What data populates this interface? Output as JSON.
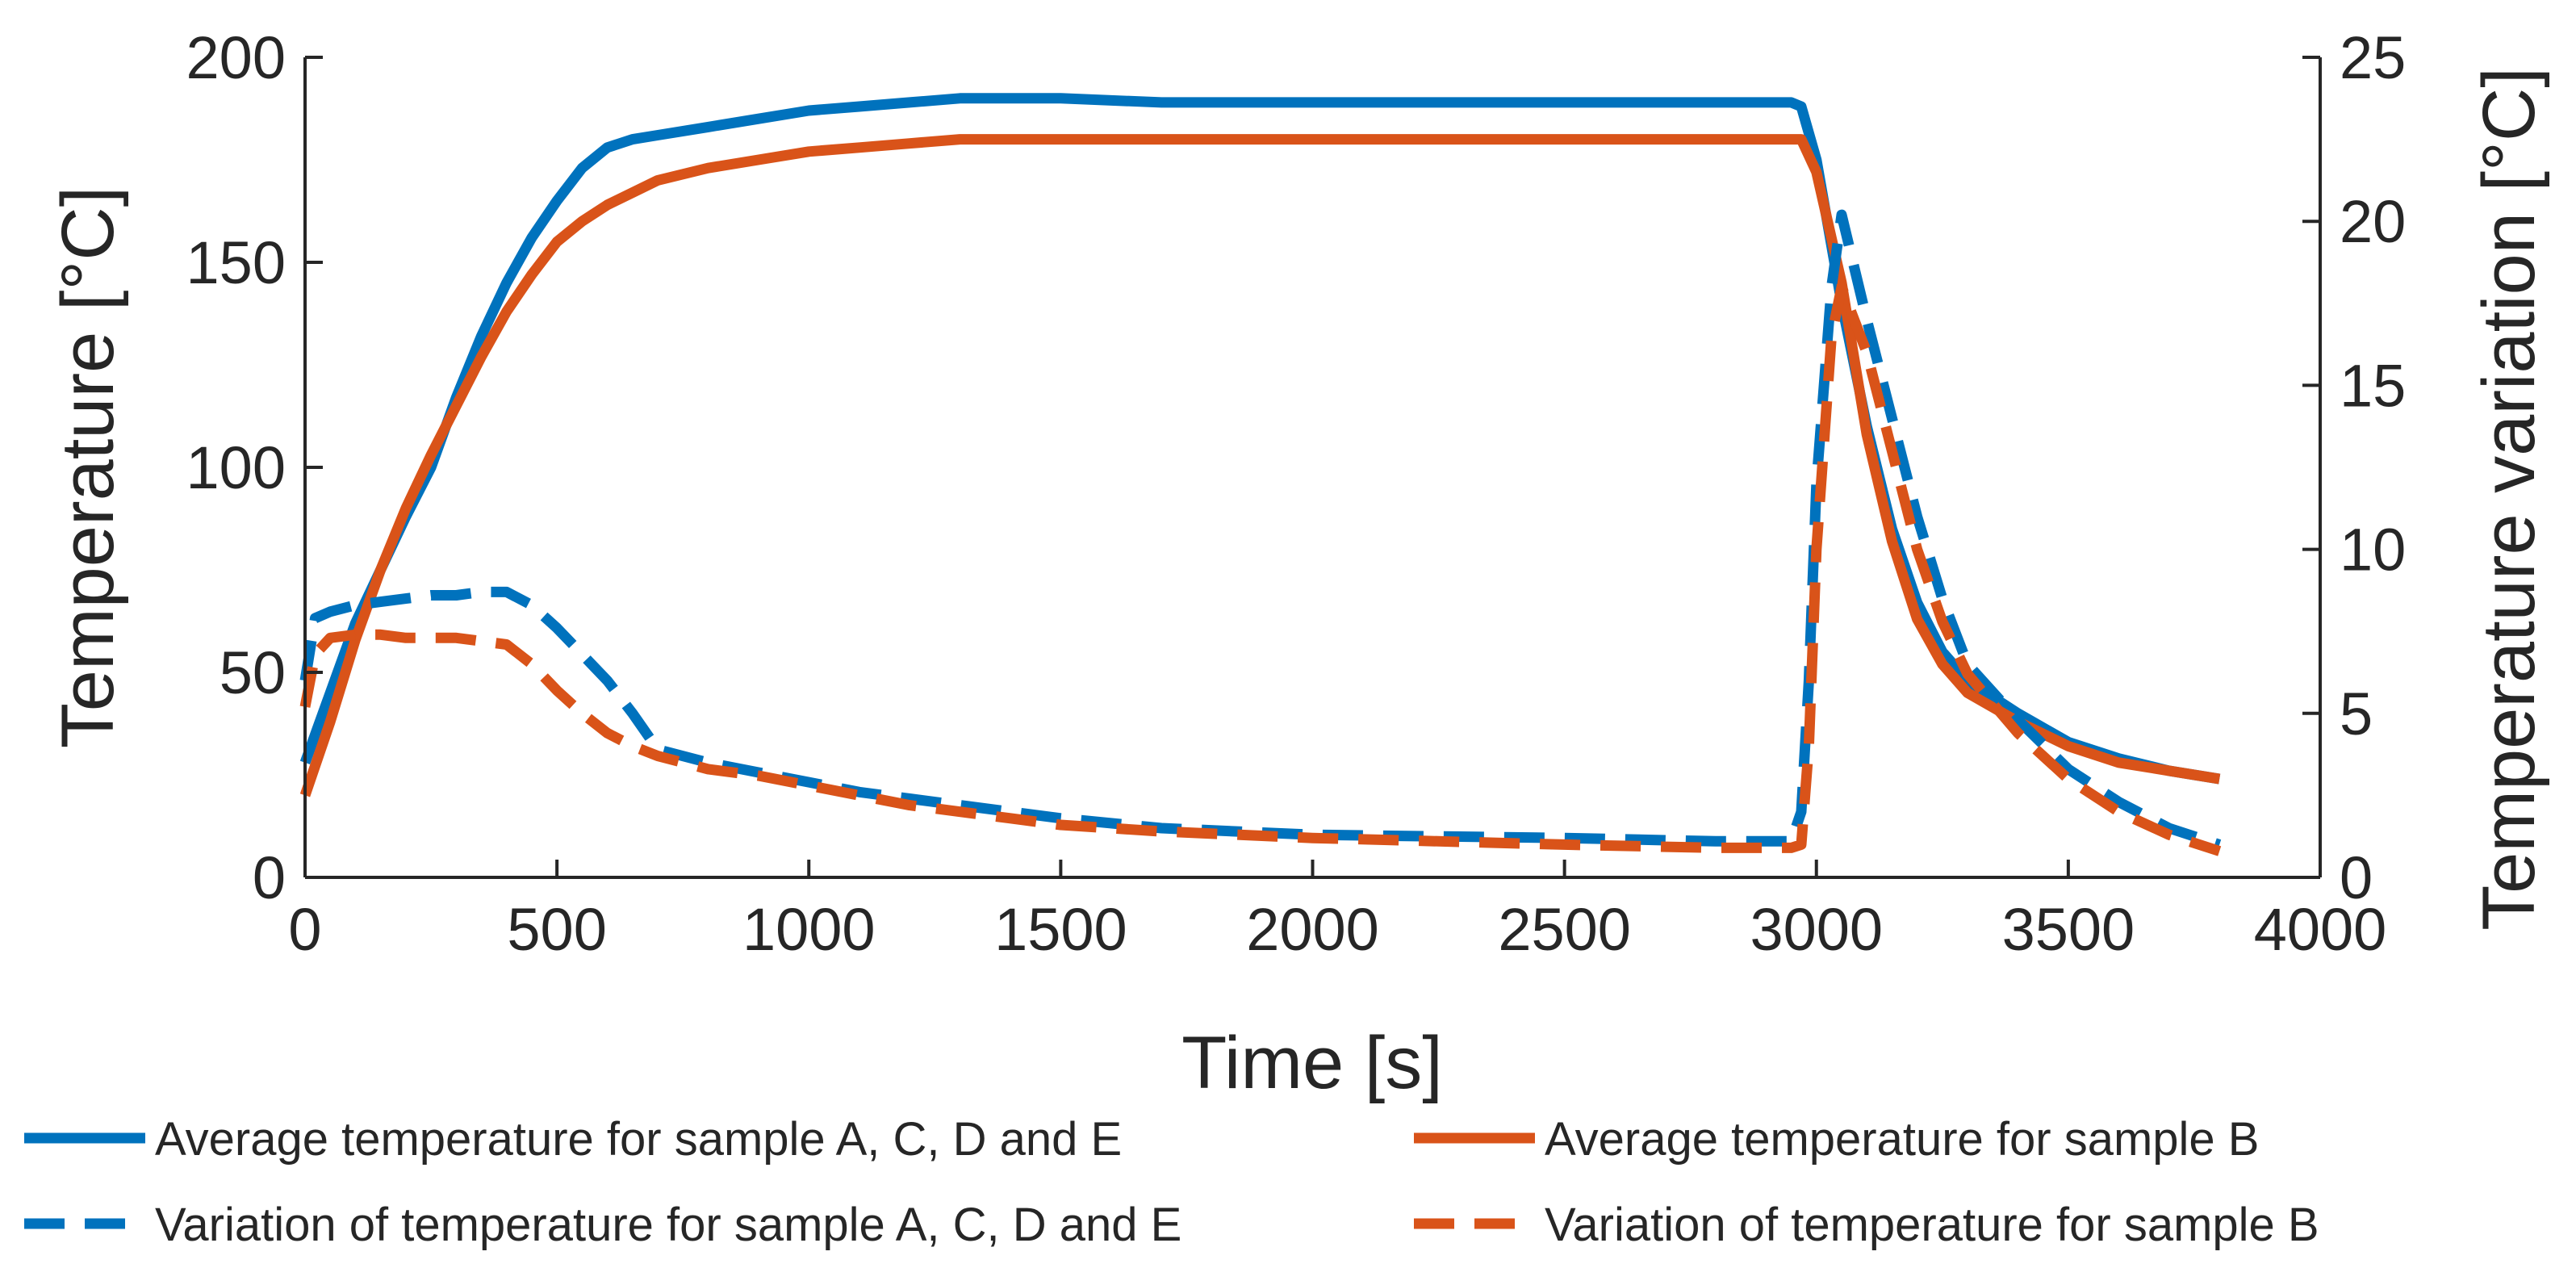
{
  "chart_data": {
    "type": "line",
    "xlabel": "Time [s]",
    "ylabel": "Temperature [°C]",
    "y2label": "Temperature variation [°C]",
    "xlim": [
      0,
      4000
    ],
    "ylim": [
      0,
      200
    ],
    "y2lim": [
      0,
      25
    ],
    "xticks": [
      "0",
      "500",
      "1000",
      "1500",
      "2000",
      "2500",
      "3000",
      "3500",
      "4000"
    ],
    "yticks": [
      "0",
      "50",
      "100",
      "150",
      "200"
    ],
    "y2ticks": [
      "0",
      "5",
      "10",
      "15",
      "20",
      "25"
    ],
    "grid": false,
    "legend_position": "bottom",
    "colors": {
      "blue": "#0072BD",
      "orange": "#D95319",
      "axis": "#262626"
    },
    "series": [
      {
        "name": "Average temperature for sample A, C, D and E",
        "axis": "left",
        "style": "solid",
        "color": "#0072BD",
        "x": [
          0,
          50,
          100,
          150,
          200,
          250,
          300,
          350,
          400,
          450,
          500,
          550,
          600,
          650,
          700,
          800,
          900,
          1000,
          1100,
          1200,
          1300,
          1400,
          1500,
          1700,
          2000,
          2500,
          2800,
          2950,
          2970,
          3000,
          3050,
          3100,
          3150,
          3200,
          3250,
          3300,
          3400,
          3500,
          3600,
          3700,
          3800
        ],
        "y": [
          28,
          45,
          62,
          75,
          88,
          100,
          117,
          132,
          145,
          156,
          165,
          173,
          178,
          180,
          181,
          183,
          185,
          187,
          188,
          189,
          190,
          190,
          190,
          189,
          189,
          189,
          189,
          189,
          188,
          175,
          140,
          110,
          85,
          67,
          55,
          48,
          40,
          33,
          29,
          26,
          24
        ]
      },
      {
        "name": "Average temperature for sample B",
        "axis": "left",
        "style": "solid",
        "color": "#D95319",
        "x": [
          0,
          50,
          100,
          150,
          200,
          250,
          300,
          350,
          400,
          450,
          500,
          550,
          600,
          650,
          700,
          800,
          900,
          1000,
          1100,
          1200,
          1300,
          1400,
          1500,
          1700,
          2000,
          2500,
          2800,
          2950,
          2970,
          3000,
          3050,
          3100,
          3150,
          3200,
          3250,
          3300,
          3400,
          3500,
          3600,
          3700,
          3800
        ],
        "y": [
          20,
          38,
          58,
          75,
          90,
          103,
          115,
          127,
          138,
          147,
          155,
          160,
          164,
          167,
          170,
          173,
          175,
          177,
          178,
          179,
          180,
          180,
          180,
          180,
          180,
          180,
          180,
          180,
          180,
          172,
          145,
          108,
          82,
          63,
          52,
          45,
          38,
          32,
          28,
          26,
          24
        ]
      },
      {
        "name": "Variation of temperature for sample A, C, D and E",
        "axis": "right",
        "style": "dashed",
        "color": "#0072BD",
        "x": [
          0,
          20,
          50,
          100,
          150,
          200,
          250,
          300,
          350,
          400,
          450,
          500,
          550,
          600,
          650,
          700,
          800,
          900,
          1000,
          1100,
          1200,
          1300,
          1400,
          1500,
          1700,
          2000,
          2500,
          2800,
          2950,
          2970,
          2985,
          3000,
          3030,
          3050,
          3100,
          3150,
          3200,
          3250,
          3300,
          3400,
          3500,
          3600,
          3700,
          3800
        ],
        "y": [
          6.0,
          7.9,
          8.1,
          8.3,
          8.4,
          8.5,
          8.6,
          8.6,
          8.7,
          8.7,
          8.3,
          7.6,
          6.8,
          6.0,
          5.0,
          3.9,
          3.5,
          3.2,
          2.9,
          2.6,
          2.4,
          2.2,
          2.0,
          1.8,
          1.5,
          1.3,
          1.2,
          1.1,
          1.1,
          2.0,
          6.0,
          12.0,
          18.0,
          20.2,
          17.0,
          14.0,
          11.0,
          8.5,
          6.5,
          4.8,
          3.3,
          2.3,
          1.5,
          1.0
        ]
      },
      {
        "name": "Variation of temperature for sample B",
        "axis": "right",
        "style": "dashed",
        "color": "#D95319",
        "x": [
          0,
          20,
          50,
          100,
          150,
          200,
          250,
          300,
          350,
          400,
          450,
          500,
          550,
          600,
          650,
          700,
          800,
          900,
          1000,
          1100,
          1200,
          1300,
          1400,
          1500,
          1700,
          2000,
          2500,
          2800,
          2950,
          2970,
          2985,
          3000,
          3030,
          3050,
          3100,
          3150,
          3200,
          3250,
          3300,
          3400,
          3500,
          3600,
          3700,
          3800
        ],
        "y": [
          5.2,
          6.8,
          7.3,
          7.4,
          7.4,
          7.3,
          7.3,
          7.3,
          7.2,
          7.1,
          6.5,
          5.7,
          5.0,
          4.4,
          4.0,
          3.7,
          3.3,
          3.1,
          2.8,
          2.5,
          2.2,
          2.0,
          1.8,
          1.6,
          1.4,
          1.2,
          1.0,
          0.9,
          0.9,
          1.0,
          4.0,
          10.0,
          16.5,
          18.0,
          16.0,
          13.0,
          10.0,
          7.8,
          6.2,
          4.4,
          3.0,
          2.0,
          1.3,
          0.8
        ]
      }
    ]
  }
}
